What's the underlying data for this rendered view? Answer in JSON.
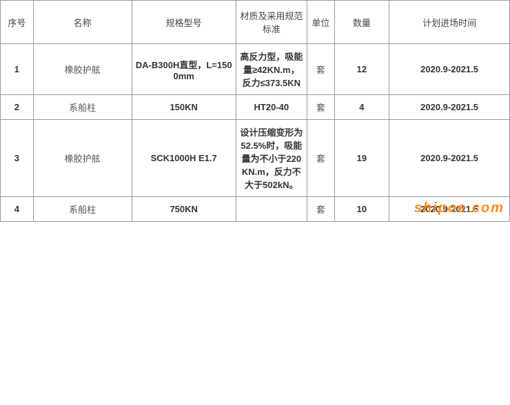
{
  "table": {
    "columns": [
      {
        "key": "seq",
        "label": "序号"
      },
      {
        "key": "name",
        "label": "名称"
      },
      {
        "key": "spec",
        "label": "规格型号"
      },
      {
        "key": "material",
        "label": "材质及采用规范标准"
      },
      {
        "key": "unit",
        "label": "单位"
      },
      {
        "key": "qty",
        "label": "数量"
      },
      {
        "key": "time",
        "label": "计划进场时间"
      }
    ],
    "rows": [
      {
        "seq": "1",
        "name": "橡胶护舷",
        "spec": "DA-B300H直型，L=1500mm",
        "material": "高反力型，吸能量≥42KN.m，反力≤373.5KN",
        "unit": "套",
        "qty": "12",
        "time": "2020.9-2021.5"
      },
      {
        "seq": "2",
        "name": "系船柱",
        "spec": "150KN",
        "material": "HT20-40",
        "unit": "套",
        "qty": "4",
        "time": "2020.9-2021.5"
      },
      {
        "seq": "3",
        "name": "橡胶护舷",
        "spec": "SCK1000H E1.7",
        "material": "设计压缩变形为52.5%时，吸能量为不小于220KN.m，反力不大于502kN。",
        "unit": "套",
        "qty": "19",
        "time": "2020.9-2021.5"
      },
      {
        "seq": "4",
        "name": "系船柱",
        "spec": "750KN",
        "material": "",
        "unit": "套",
        "qty": "10",
        "time": "2020.9-2021.5"
      }
    ]
  },
  "watermark": {
    "part1": "sh",
    "part2": "ipoe",
    "dot": ".",
    "part3": "com"
  },
  "style": {
    "border_color": "#999999",
    "text_color": "#555555",
    "bold_color": "#333333",
    "background": "#ffffff",
    "font_size": 13,
    "header_font_size": 13,
    "watermark_color": "#ff8c1a"
  }
}
